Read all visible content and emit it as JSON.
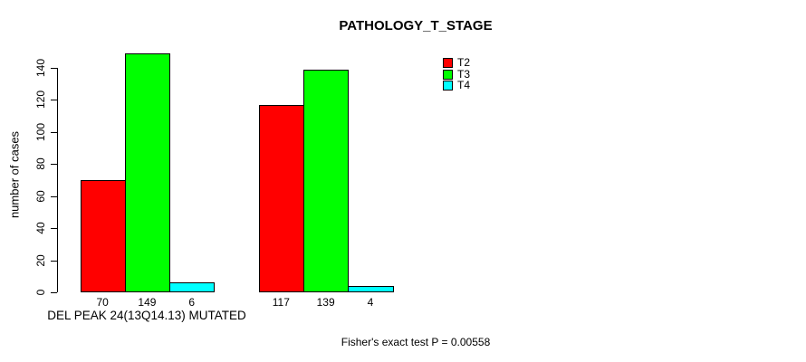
{
  "title": "PATHOLOGY_T_STAGE",
  "chart_data": {
    "type": "bar",
    "title": "PATHOLOGY_T_STAGE",
    "ylabel": "number of cases",
    "xlabel": "DEL PEAK 24(13Q14.13) MUTATED",
    "categories": [
      "DEL PEAK 24(13Q14.13) MUTATED",
      ""
    ],
    "series": [
      {
        "name": "T2",
        "color": "#FF0000",
        "values": [
          70,
          117
        ]
      },
      {
        "name": "T3",
        "color": "#00FF00",
        "values": [
          149,
          139
        ]
      },
      {
        "name": "T4",
        "color": "#00FFFF",
        "values": [
          6,
          4
        ]
      }
    ],
    "bar_value_labels": [
      [
        70,
        149,
        6
      ],
      [
        117,
        139,
        4
      ]
    ],
    "yticks": [
      0,
      20,
      40,
      60,
      80,
      100,
      120,
      140
    ],
    "ylim": [
      0,
      155
    ],
    "grid": false,
    "legend_position": "top-right",
    "annotation": "Fisher's exact test P = 0.00558"
  }
}
